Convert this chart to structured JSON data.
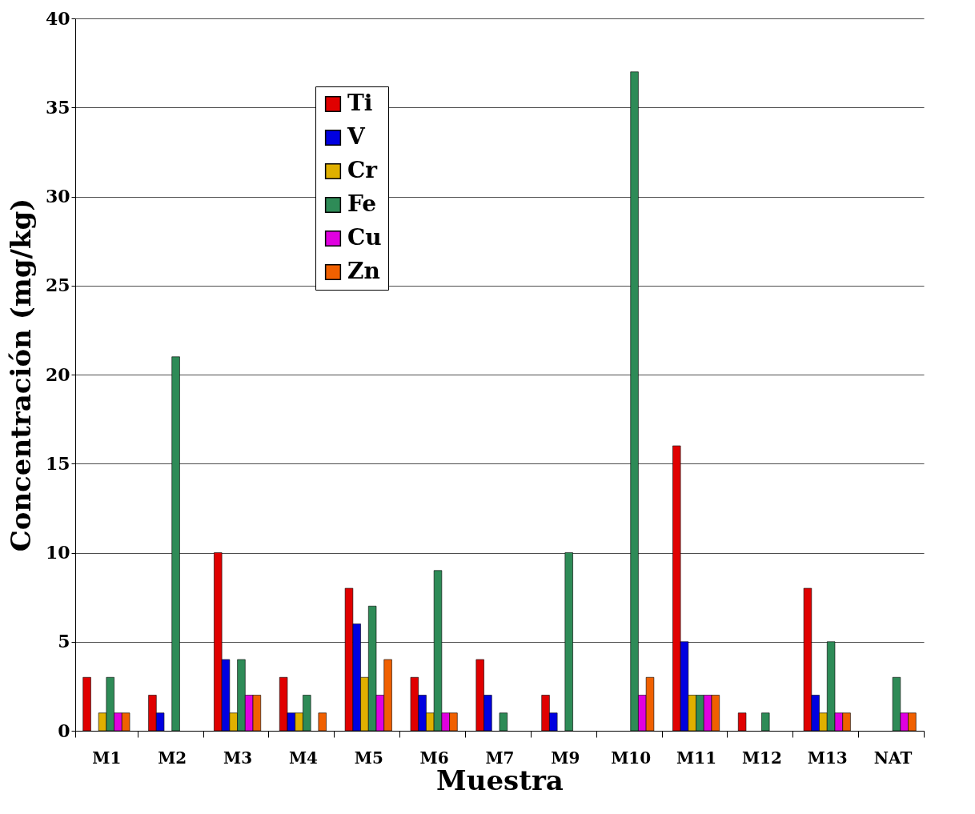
{
  "chart_data": {
    "type": "bar",
    "xlabel": "Muestra",
    "ylabel": "Concentración (mg/kg)",
    "categories": [
      "M1",
      "M2",
      "M3",
      "M4",
      "M5",
      "M6",
      "M7",
      "M9",
      "M10",
      "M11",
      "M12",
      "M13",
      "NAT"
    ],
    "series": [
      {
        "name": "Ti",
        "color": "#e00000",
        "values": [
          3,
          2,
          10,
          3,
          8,
          3,
          4,
          2,
          0,
          16,
          1,
          8,
          0
        ]
      },
      {
        "name": "V",
        "color": "#0000e0",
        "values": [
          0,
          1,
          4,
          1,
          6,
          2,
          2,
          1,
          0,
          5,
          0,
          2,
          0
        ]
      },
      {
        "name": "Cr",
        "color": "#e0b000",
        "values": [
          1,
          0,
          1,
          1,
          3,
          1,
          0,
          0,
          0,
          2,
          0,
          1,
          0
        ]
      },
      {
        "name": "Fe",
        "color": "#2e8b57",
        "values": [
          3,
          21,
          4,
          2,
          7,
          9,
          1,
          10,
          37,
          2,
          1,
          5,
          3
        ]
      },
      {
        "name": "Cu",
        "color": "#e000e0",
        "values": [
          1,
          0,
          2,
          0,
          2,
          1,
          0,
          0,
          2,
          2,
          0,
          1,
          1
        ]
      },
      {
        "name": "Zn",
        "color": "#f06000",
        "values": [
          1,
          0,
          2,
          1,
          4,
          1,
          0,
          0,
          3,
          2,
          0,
          1,
          1
        ]
      }
    ],
    "ylim": [
      0,
      40
    ],
    "yticks": [
      0,
      5,
      10,
      15,
      20,
      25,
      30,
      35,
      40
    ],
    "grid": "y",
    "legend": "top left"
  }
}
